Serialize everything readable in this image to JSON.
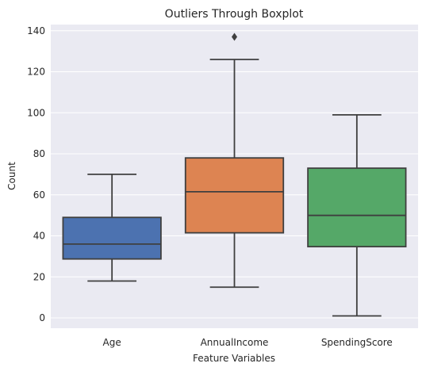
{
  "chart_data": {
    "type": "box",
    "title": "Outliers Through Boxplot",
    "xlabel": "Feature Variables",
    "ylabel": "Count",
    "ylim": [
      -5,
      143
    ],
    "yticks": [
      0,
      20,
      40,
      60,
      80,
      100,
      120,
      140
    ],
    "grid": true,
    "categories": [
      "Age",
      "AnnualIncome",
      "SpendingScore"
    ],
    "colors": [
      "#4c72b0",
      "#dd8452",
      "#55a868"
    ],
    "series": [
      {
        "category": "Age",
        "whisker_low": 18,
        "q1": 28.75,
        "median": 36,
        "q3": 49,
        "whisker_high": 70,
        "outliers": []
      },
      {
        "category": "AnnualIncome",
        "whisker_low": 15,
        "q1": 41.5,
        "median": 61.5,
        "q3": 78,
        "whisker_high": 126,
        "outliers": [
          137
        ]
      },
      {
        "category": "SpendingScore",
        "whisker_low": 1,
        "q1": 34.75,
        "median": 50,
        "q3": 73,
        "whisker_high": 99,
        "outliers": []
      }
    ]
  }
}
